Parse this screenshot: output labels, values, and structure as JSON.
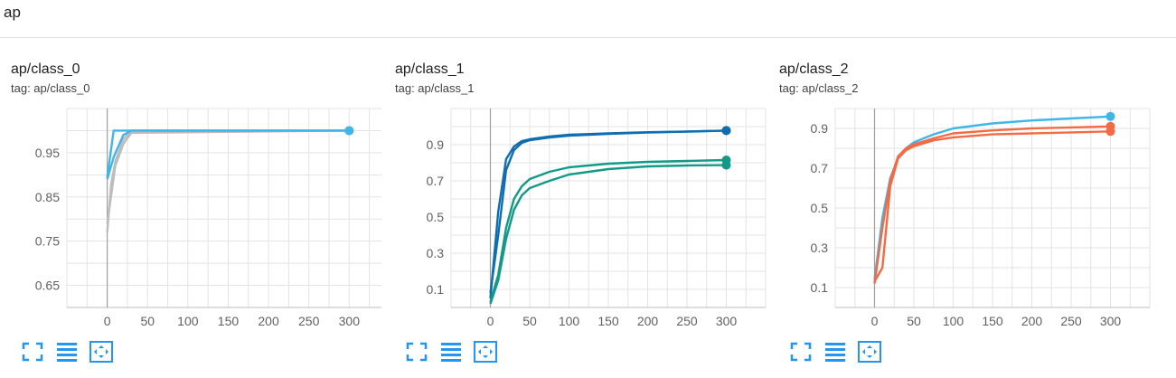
{
  "group": {
    "title": "ap"
  },
  "cards": [
    {
      "title": "ap/class_0",
      "tag": "tag: ap/class_0"
    },
    {
      "title": "ap/class_1",
      "tag": "tag: ap/class_1"
    },
    {
      "title": "ap/class_2",
      "tag": "tag: ap/class_2"
    }
  ],
  "toolbar_icons": [
    "fullscreen-icon",
    "toggle-y-log-icon",
    "fit-domain-icon"
  ],
  "colors": {
    "accent": "#2196f3",
    "light_blue": "#3fb5e8",
    "grey": "#bdbdbd",
    "dark_blue": "#0f6eb2",
    "teal": "#119a87",
    "orange": "#f26b45"
  },
  "chart_data": [
    {
      "type": "line",
      "x_ticks": [
        0,
        50,
        100,
        150,
        200,
        250,
        300
      ],
      "y_ticks": [
        0.65,
        0.75,
        0.85,
        0.95
      ],
      "xlim": [
        -50,
        340
      ],
      "ylim": [
        0.6,
        1.05
      ],
      "grid": true,
      "series": [
        {
          "color": "#bdbdbd",
          "x": [
            0,
            5,
            10,
            20,
            30,
            300
          ],
          "y": [
            0.77,
            0.88,
            0.93,
            0.98,
            1.0,
            1.0
          ]
        },
        {
          "color": "#bdbdbd",
          "x": [
            0,
            10,
            20,
            30,
            300
          ],
          "y": [
            0.79,
            0.92,
            0.97,
            0.995,
            1.0
          ]
        },
        {
          "color": "#3fb5e8",
          "x": [
            0,
            8,
            20,
            30,
            300
          ],
          "y": [
            0.89,
            0.94,
            0.99,
            1.0,
            1.0
          ]
        },
        {
          "color": "#3fb5e8",
          "x": [
            0,
            8,
            300
          ],
          "y": [
            0.895,
            1.0,
            1.0
          ]
        }
      ]
    },
    {
      "type": "line",
      "x_ticks": [
        0,
        50,
        100,
        150,
        200,
        250,
        300
      ],
      "y_ticks": [
        0.1,
        0.3,
        0.5,
        0.7,
        0.9
      ],
      "xlim": [
        -50,
        350
      ],
      "ylim": [
        0.0,
        1.1
      ],
      "grid": true,
      "series": [
        {
          "color": "#0f6eb2",
          "x": [
            0,
            10,
            20,
            30,
            40,
            50,
            75,
            100,
            150,
            200,
            250,
            300
          ],
          "y": [
            0.05,
            0.53,
            0.82,
            0.89,
            0.92,
            0.93,
            0.945,
            0.955,
            0.963,
            0.969,
            0.973,
            0.978
          ]
        },
        {
          "color": "#0f6eb2",
          "x": [
            0,
            10,
            20,
            30,
            40,
            50,
            75,
            100,
            150,
            200,
            250,
            300
          ],
          "y": [
            0.08,
            0.4,
            0.76,
            0.87,
            0.91,
            0.925,
            0.94,
            0.95,
            0.96,
            0.967,
            0.972,
            0.978
          ]
        },
        {
          "color": "#119a87",
          "x": [
            0,
            10,
            20,
            30,
            40,
            50,
            75,
            100,
            150,
            200,
            250,
            300
          ],
          "y": [
            0.03,
            0.18,
            0.44,
            0.6,
            0.67,
            0.71,
            0.75,
            0.775,
            0.795,
            0.805,
            0.81,
            0.815
          ]
        },
        {
          "color": "#119a87",
          "x": [
            0,
            10,
            20,
            30,
            40,
            50,
            75,
            100,
            150,
            200,
            250,
            300
          ],
          "y": [
            0.02,
            0.15,
            0.38,
            0.54,
            0.62,
            0.66,
            0.7,
            0.735,
            0.765,
            0.78,
            0.785,
            0.787
          ]
        }
      ]
    },
    {
      "type": "line",
      "x_ticks": [
        0,
        50,
        100,
        150,
        200,
        250,
        300
      ],
      "y_ticks": [
        0.1,
        0.3,
        0.5,
        0.7,
        0.9
      ],
      "xlim": [
        -50,
        350
      ],
      "ylim": [
        0.0,
        1.0
      ],
      "grid": true,
      "series": [
        {
          "color": "#3fb5e8",
          "x": [
            0,
            10,
            20,
            30,
            40,
            50,
            75,
            100,
            150,
            200,
            250,
            300
          ],
          "y": [
            0.14,
            0.45,
            0.65,
            0.75,
            0.8,
            0.83,
            0.87,
            0.9,
            0.925,
            0.94,
            0.95,
            0.96
          ]
        },
        {
          "color": "#f26b45",
          "x": [
            0,
            10,
            20,
            30,
            40,
            50,
            75,
            100,
            150,
            200,
            250,
            300
          ],
          "y": [
            0.13,
            0.2,
            0.61,
            0.75,
            0.79,
            0.81,
            0.84,
            0.855,
            0.87,
            0.875,
            0.88,
            0.885
          ]
        },
        {
          "color": "#f26b45",
          "x": [
            0,
            10,
            20,
            30,
            40,
            50,
            75,
            100,
            150,
            200,
            250,
            300
          ],
          "y": [
            0.12,
            0.4,
            0.64,
            0.76,
            0.8,
            0.82,
            0.85,
            0.875,
            0.89,
            0.9,
            0.905,
            0.91
          ]
        }
      ]
    }
  ]
}
